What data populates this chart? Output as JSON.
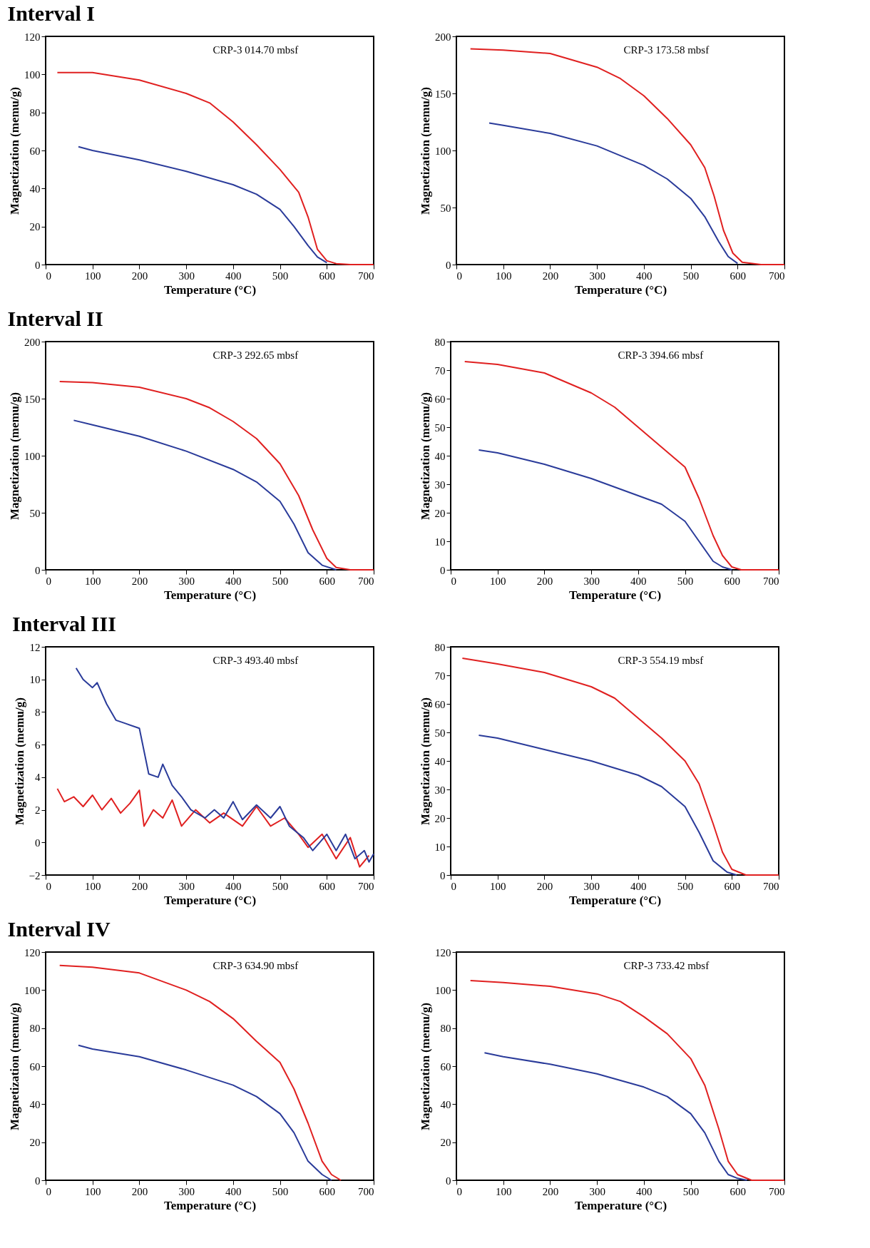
{
  "chart_data": [
    {
      "type": "line",
      "title": "Interval I",
      "xlabel": "Temperature (°C)",
      "ylabel": "Magnetization (memu/g)",
      "annotations": [
        "CRP-3 014.70 mbsf"
      ],
      "xlim": [
        0,
        700
      ],
      "xticks": [
        0,
        100,
        200,
        300,
        400,
        500,
        600,
        700
      ],
      "ylim": [
        0,
        120
      ],
      "yticks": [
        0,
        20,
        40,
        60,
        80,
        100,
        120
      ],
      "grid": false,
      "marker": "none",
      "line_style": "solid",
      "series": [
        {
          "color": "#e02020",
          "x": [
            25,
            100,
            200,
            300,
            350,
            400,
            450,
            500,
            540,
            560,
            580,
            600,
            620,
            650,
            700
          ],
          "values": [
            101,
            101,
            97,
            90,
            85,
            75,
            63,
            50,
            38,
            25,
            8,
            2,
            0.5,
            0,
            0
          ]
        },
        {
          "color": "#2a3b9a",
          "x": [
            70,
            100,
            200,
            300,
            400,
            450,
            500,
            530,
            560,
            580,
            600
          ],
          "values": [
            62,
            60,
            55,
            49,
            42,
            37,
            29,
            20,
            10,
            4,
            1
          ]
        }
      ]
    },
    {
      "type": "line",
      "xlabel": "Temperature (°C)",
      "ylabel": "Magnetization (memu/g)",
      "annotations": [
        "CRP-3 173.58 mbsf"
      ],
      "xlim": [
        0,
        700
      ],
      "xticks": [
        0,
        100,
        200,
        300,
        400,
        500,
        600,
        700
      ],
      "ylim": [
        0,
        200
      ],
      "yticks": [
        0,
        50,
        100,
        150,
        200
      ],
      "grid": false,
      "marker": "none",
      "line_style": "solid",
      "series": [
        {
          "color": "#e02020",
          "x": [
            30,
            100,
            200,
            300,
            350,
            400,
            450,
            500,
            530,
            550,
            570,
            590,
            610,
            650,
            700
          ],
          "values": [
            189,
            188,
            185,
            173,
            163,
            148,
            128,
            105,
            85,
            60,
            30,
            10,
            2,
            0,
            0
          ]
        },
        {
          "color": "#2a3b9a",
          "x": [
            70,
            100,
            200,
            300,
            400,
            450,
            500,
            530,
            560,
            580,
            600
          ],
          "values": [
            124,
            122,
            115,
            104,
            87,
            75,
            58,
            42,
            20,
            7,
            1
          ]
        }
      ]
    },
    {
      "type": "line",
      "title": "Interval II",
      "xlabel": "Temperature (°C)",
      "ylabel": "Magnetization (memu/g)",
      "annotations": [
        "CRP-3 292.65 mbsf"
      ],
      "xlim": [
        0,
        700
      ],
      "xticks": [
        0,
        100,
        200,
        300,
        400,
        500,
        600,
        700
      ],
      "ylim": [
        0,
        200
      ],
      "yticks": [
        0,
        50,
        100,
        150,
        200
      ],
      "grid": false,
      "marker": "none",
      "line_style": "solid",
      "series": [
        {
          "color": "#e02020",
          "x": [
            30,
            100,
            200,
            300,
            350,
            400,
            450,
            500,
            540,
            570,
            600,
            620,
            650,
            700
          ],
          "values": [
            165,
            164,
            160,
            150,
            142,
            130,
            115,
            93,
            65,
            35,
            10,
            2,
            0,
            0
          ]
        },
        {
          "color": "#2a3b9a",
          "x": [
            60,
            100,
            200,
            300,
            400,
            450,
            500,
            530,
            560,
            590,
            620
          ],
          "values": [
            131,
            127,
            117,
            104,
            88,
            77,
            60,
            40,
            15,
            4,
            0
          ]
        }
      ]
    },
    {
      "type": "line",
      "xlabel": "Temperature (°C)",
      "ylabel": "Magnetization (memu/g)",
      "annotations": [
        "CRP-3 394.66 mbsf"
      ],
      "xlim": [
        0,
        700
      ],
      "xticks": [
        0,
        100,
        200,
        300,
        400,
        500,
        600,
        700
      ],
      "ylim": [
        0,
        80
      ],
      "yticks": [
        0,
        10,
        20,
        30,
        40,
        50,
        60,
        70,
        80
      ],
      "grid": false,
      "marker": "none",
      "line_style": "solid",
      "series": [
        {
          "color": "#e02020",
          "x": [
            30,
            100,
            200,
            300,
            350,
            400,
            450,
            500,
            530,
            560,
            580,
            600,
            620,
            700
          ],
          "values": [
            73,
            72,
            69,
            62,
            57,
            50,
            43,
            36,
            25,
            12,
            5,
            1,
            0,
            0
          ]
        },
        {
          "color": "#2a3b9a",
          "x": [
            60,
            100,
            200,
            300,
            400,
            450,
            500,
            530,
            560,
            580,
            600
          ],
          "values": [
            42,
            41,
            37,
            32,
            26,
            23,
            17,
            10,
            3,
            1,
            0
          ]
        }
      ]
    },
    {
      "type": "line",
      "title": "Interval III",
      "xlabel": "Temperature (°C)",
      "ylabel": "Magnetization (memu/g)",
      "annotations": [
        "CRP-3 493.40 mbsf"
      ],
      "xlim": [
        0,
        700
      ],
      "xticks": [
        0,
        100,
        200,
        300,
        400,
        500,
        600,
        700
      ],
      "ylim": [
        -2,
        12
      ],
      "yticks": [
        -2,
        0,
        2,
        4,
        6,
        8,
        10,
        12
      ],
      "grid": false,
      "marker": "none",
      "line_style": "solid",
      "series": [
        {
          "color": "#e02020",
          "x": [
            25,
            40,
            60,
            80,
            100,
            120,
            140,
            160,
            180,
            200,
            210,
            230,
            250,
            270,
            290,
            320,
            350,
            380,
            420,
            450,
            480,
            510,
            540,
            560,
            590,
            620,
            650,
            670,
            690
          ],
          "values": [
            3.3,
            2.5,
            2.8,
            2.2,
            2.9,
            2.0,
            2.7,
            1.8,
            2.4,
            3.2,
            1.0,
            2.0,
            1.5,
            2.6,
            1.0,
            2.0,
            1.2,
            1.8,
            1.0,
            2.2,
            1.0,
            1.5,
            0.5,
            -0.3,
            0.5,
            -1.0,
            0.3,
            -1.5,
            -0.8
          ]
        },
        {
          "color": "#2a3b9a",
          "x": [
            65,
            80,
            100,
            110,
            130,
            150,
            170,
            200,
            220,
            240,
            250,
            270,
            290,
            310,
            340,
            360,
            380,
            400,
            420,
            450,
            480,
            500,
            520,
            550,
            570,
            600,
            620,
            640,
            660,
            680,
            690,
            700
          ],
          "values": [
            10.7,
            10,
            9.5,
            9.8,
            8.5,
            7.5,
            7.3,
            7,
            4.2,
            4,
            4.8,
            3.5,
            2.8,
            2,
            1.5,
            2,
            1.5,
            2.5,
            1.4,
            2.3,
            1.5,
            2.2,
            1,
            0.3,
            -0.5,
            0.5,
            -0.5,
            0.5,
            -1,
            -0.5,
            -1.2,
            -0.7
          ]
        }
      ]
    },
    {
      "type": "line",
      "xlabel": "Temperature (°C)",
      "ylabel": "Magnetization (memu/g)",
      "annotations": [
        "CRP-3 554.19 mbsf"
      ],
      "xlim": [
        0,
        700
      ],
      "xticks": [
        0,
        100,
        200,
        300,
        400,
        500,
        600,
        700
      ],
      "ylim": [
        0,
        80
      ],
      "yticks": [
        0,
        10,
        20,
        30,
        40,
        50,
        60,
        70,
        80
      ],
      "grid": false,
      "marker": "none",
      "line_style": "solid",
      "series": [
        {
          "color": "#e02020",
          "x": [
            25,
            100,
            200,
            300,
            350,
            400,
            450,
            500,
            530,
            560,
            580,
            600,
            630,
            700
          ],
          "values": [
            76,
            74,
            71,
            66,
            62,
            55,
            48,
            40,
            32,
            18,
            8,
            2,
            0,
            0
          ]
        },
        {
          "color": "#2a3b9a",
          "x": [
            60,
            100,
            200,
            300,
            400,
            450,
            500,
            530,
            560,
            590,
            610
          ],
          "values": [
            49,
            48,
            44,
            40,
            35,
            31,
            24,
            15,
            5,
            1,
            0
          ]
        }
      ]
    },
    {
      "type": "line",
      "title": "Interval IV",
      "xlabel": "Temperature (°C)",
      "ylabel": "Magnetization (memu/g)",
      "annotations": [
        "CRP-3 634.90 mbsf"
      ],
      "xlim": [
        0,
        700
      ],
      "xticks": [
        0,
        100,
        200,
        300,
        400,
        500,
        600,
        700
      ],
      "ylim": [
        0,
        120
      ],
      "yticks": [
        0,
        20,
        40,
        60,
        80,
        100,
        120
      ],
      "grid": false,
      "marker": "none",
      "line_style": "solid",
      "series": [
        {
          "color": "#e02020",
          "x": [
            30,
            100,
            200,
            300,
            350,
            400,
            450,
            500,
            530,
            560,
            590,
            610,
            630
          ],
          "values": [
            113,
            112,
            109,
            100,
            94,
            85,
            73,
            62,
            48,
            30,
            10,
            3,
            0
          ]
        },
        {
          "color": "#2a3b9a",
          "x": [
            70,
            100,
            200,
            300,
            400,
            450,
            500,
            530,
            560,
            590,
            610
          ],
          "values": [
            71,
            69,
            65,
            58,
            50,
            44,
            35,
            25,
            10,
            3,
            0
          ]
        }
      ]
    },
    {
      "type": "line",
      "xlabel": "Temperature (°C)",
      "ylabel": "Magnetization (memu/g)",
      "annotations": [
        "CRP-3 733.42 mbsf"
      ],
      "xlim": [
        0,
        700
      ],
      "xticks": [
        0,
        100,
        200,
        300,
        400,
        500,
        600,
        700
      ],
      "ylim": [
        0,
        120
      ],
      "yticks": [
        0,
        20,
        40,
        60,
        80,
        100,
        120
      ],
      "grid": false,
      "marker": "none",
      "line_style": "solid",
      "series": [
        {
          "color": "#e02020",
          "x": [
            30,
            100,
            200,
            300,
            350,
            400,
            450,
            500,
            530,
            560,
            580,
            600,
            630,
            700
          ],
          "values": [
            105,
            104,
            102,
            98,
            94,
            86,
            77,
            64,
            50,
            27,
            10,
            3,
            0,
            0
          ]
        },
        {
          "color": "#2a3b9a",
          "x": [
            60,
            100,
            200,
            300,
            400,
            450,
            500,
            530,
            560,
            580,
            600,
            620
          ],
          "values": [
            67,
            65,
            61,
            56,
            49,
            44,
            35,
            25,
            10,
            3,
            1,
            0
          ]
        }
      ]
    }
  ]
}
